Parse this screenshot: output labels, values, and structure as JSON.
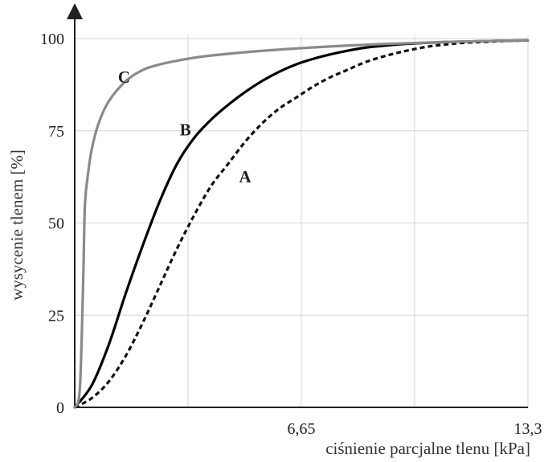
{
  "chart_data": {
    "type": "line",
    "xlabel": "ciśnienie parcjalne tlenu [kPa]",
    "ylabel": "wysycenie tlenem [%]",
    "xlim": [
      0,
      13.3
    ],
    "ylim": [
      0,
      100
    ],
    "x_ticks": [
      {
        "value": 6.65,
        "label": "6,65"
      },
      {
        "value": 13.3,
        "label": "13,3"
      }
    ],
    "y_ticks": [
      {
        "value": 0,
        "label": "0"
      },
      {
        "value": 25,
        "label": "25"
      },
      {
        "value": 50,
        "label": "50"
      },
      {
        "value": 75,
        "label": "75"
      },
      {
        "value": 100,
        "label": "100"
      }
    ],
    "grid": true,
    "series": [
      {
        "name": "A",
        "color": "#111111",
        "dash": "dashed",
        "label_at": [
          5.0,
          62.5
        ],
        "x": [
          0,
          0.5,
          1.0,
          1.5,
          2.0,
          2.5,
          3.0,
          3.5,
          4.0,
          4.5,
          5.0,
          5.5,
          6.0,
          6.5,
          7.0,
          7.5,
          8.0,
          8.5,
          9.0,
          9.5,
          10.0,
          10.5,
          11.0,
          11.5,
          12.0,
          12.5,
          13.3
        ],
        "y": [
          0,
          2.5,
          7,
          14,
          23,
          33,
          43,
          52,
          60,
          66,
          72,
          77,
          81,
          84,
          87,
          89.5,
          91.5,
          93.5,
          95,
          96.2,
          97.2,
          98,
          98.5,
          98.9,
          99.1,
          99.3,
          99.5
        ]
      },
      {
        "name": "B",
        "color": "#000000",
        "dash": "solid",
        "label_at": [
          3.25,
          75.3
        ],
        "x": [
          0,
          0.5,
          1.0,
          1.5,
          2.0,
          2.5,
          3.0,
          3.5,
          4.0,
          4.5,
          5.0,
          5.5,
          6.0,
          6.5,
          7.0,
          7.5,
          8.0,
          8.5,
          9.0,
          9.5,
          10.0,
          10.5,
          11.0,
          11.5,
          12.0,
          12.5,
          13.3
        ],
        "y": [
          0,
          6,
          17,
          31,
          44,
          56,
          66,
          73,
          78,
          82,
          85.5,
          88.5,
          91,
          93,
          94.5,
          95.7,
          96.7,
          97.5,
          98,
          98.4,
          98.7,
          98.9,
          99.1,
          99.2,
          99.3,
          99.4,
          99.5
        ]
      },
      {
        "name": "C",
        "color": "#8a8a8a",
        "dash": "solid",
        "label_at": [
          1.45,
          89.5
        ],
        "x": [
          0,
          0.15,
          0.25,
          0.3,
          0.4,
          0.5,
          0.7,
          1.0,
          1.5,
          2.0,
          2.5,
          3.0,
          3.5,
          4.0,
          5.0,
          6.0,
          7.0,
          8.0,
          9.0,
          10.0,
          11.0,
          12.0,
          13.3
        ],
        "y": [
          0,
          5,
          35,
          55,
          64,
          70,
          77,
          83,
          88.5,
          91.5,
          93,
          94,
          94.8,
          95.4,
          96.3,
          97,
          97.6,
          98.1,
          98.5,
          98.8,
          99.1,
          99.3,
          99.5
        ]
      }
    ]
  }
}
